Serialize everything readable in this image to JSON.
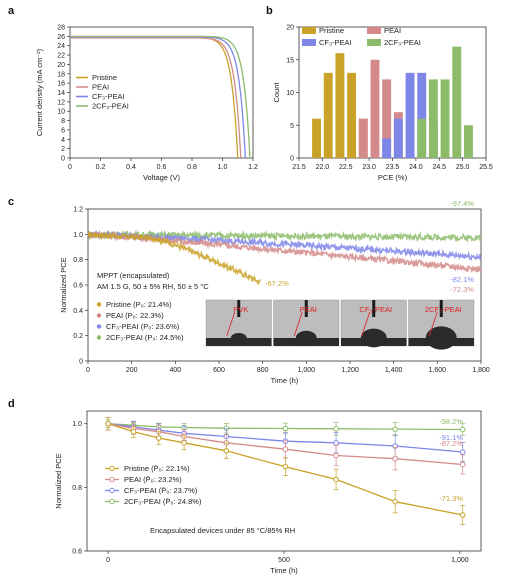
{
  "colors": {
    "pristine": "#c9a227",
    "peai": "#d48a8a",
    "cf3": "#7e86e8",
    "twocf3": "#8cbc6a",
    "pvk_label": "#e02020"
  },
  "chart_data": [
    {
      "panel": "a",
      "type": "line",
      "xlabel": "Voltage (V)",
      "ylabel": "Current density (mA cm⁻²)",
      "xlim": [
        0,
        1.2
      ],
      "ylim": [
        0,
        28
      ],
      "xticks": [
        "0",
        "0.2",
        "0.4",
        "0.6",
        "0.8",
        "1.0",
        "1.2"
      ],
      "yticks": [
        "0",
        "2",
        "4",
        "6",
        "8",
        "10",
        "12",
        "14",
        "16",
        "18",
        "20",
        "22",
        "24",
        "26",
        "28"
      ],
      "legend_position": "left-middle",
      "series": [
        {
          "name": "Pristine",
          "color_key": "pristine",
          "jsc": 25.8,
          "voc": 1.1
        },
        {
          "name": "PEAI",
          "color_key": "peai",
          "jsc": 25.7,
          "voc": 1.12
        },
        {
          "name": "CF₃-PEAI",
          "color_key": "cf3",
          "jsc": 25.9,
          "voc": 1.15
        },
        {
          "name": "2CF₃-PEAI",
          "color_key": "twocf3",
          "jsc": 26.0,
          "voc": 1.18
        }
      ]
    },
    {
      "panel": "b",
      "type": "bar",
      "xlabel": "PCE (%)",
      "ylabel": "Count",
      "xlim": [
        21.5,
        25.5
      ],
      "ylim": [
        0,
        20
      ],
      "xticks": [
        "21.5",
        "22.0",
        "22.5",
        "23.0",
        "23.5",
        "24.0",
        "24.5",
        "25.0",
        "25.5"
      ],
      "yticks": [
        "0",
        "5",
        "10",
        "15",
        "20"
      ],
      "legend_position": "top",
      "bin_width": 0.25,
      "series": [
        {
          "name": "Pristine",
          "color_key": "pristine",
          "bins": [
            21.875,
            22.125,
            22.375,
            22.625,
            22.875
          ],
          "values": [
            6,
            13,
            16,
            13,
            6
          ]
        },
        {
          "name": "PEAI",
          "color_key": "peai",
          "bins": [
            22.875,
            23.125,
            23.375,
            23.625
          ],
          "values": [
            6,
            15,
            12,
            7
          ]
        },
        {
          "name": "CF₃-PEAI",
          "color_key": "cf3",
          "bins": [
            23.375,
            23.625,
            23.875,
            24.125,
            24.375
          ],
          "values": [
            3,
            6,
            13,
            13,
            5
          ]
        },
        {
          "name": "2CF₃-PEAI",
          "color_key": "twocf3",
          "bins": [
            24.125,
            24.375,
            24.625,
            24.875,
            25.125
          ],
          "values": [
            6,
            12,
            12,
            17,
            5
          ]
        }
      ]
    },
    {
      "panel": "c",
      "type": "scatter",
      "xlabel": "Time (h)",
      "ylabel": "Normalized PCE",
      "xlim": [
        0,
        1800
      ],
      "ylim": [
        0,
        1.2
      ],
      "xticks": [
        "0",
        "200",
        "400",
        "600",
        "800",
        "1,000",
        "1,200",
        "1,400",
        "1,600",
        "1,800"
      ],
      "yticks": [
        "0",
        "0.2",
        "0.4",
        "0.6",
        "0.8",
        "1.0",
        "1.2"
      ],
      "conditions": [
        "MPPT (encapsulated)",
        "AM 1.5 G, 50 ± 5% RH, 50 ± 5 °C"
      ],
      "legend_position": "left-bottom",
      "series": [
        {
          "name": "Pristine (P₀: 21.4%)",
          "color_key": "pristine",
          "end_x": 790,
          "end_y": 0.672,
          "final_label": "-67.2%"
        },
        {
          "name": "PEAI (P₀: 22.3%)",
          "color_key": "peai",
          "end_x": 1800,
          "end_y": 0.723,
          "final_label": "-72.3%"
        },
        {
          "name": "CF₃-PEAI (P₀: 23.6%)",
          "color_key": "cf3",
          "end_x": 1800,
          "end_y": 0.821,
          "final_label": "-82.1%"
        },
        {
          "name": "2CF₃-PEAI (P₀: 24.5%)",
          "color_key": "twocf3",
          "end_x": 1800,
          "end_y": 0.974,
          "final_label": "-97.4%"
        }
      ],
      "inset_labels": [
        "PVK",
        "PEAI",
        "CF₃-PEAI",
        "2CF₃-PEAI"
      ]
    },
    {
      "panel": "d",
      "type": "line",
      "xlabel": "Time (h)",
      "ylabel": "Normalized PCE",
      "xlim": [
        -60,
        1060
      ],
      "ylim": [
        0.6,
        1.04
      ],
      "xticks": [
        "0",
        "500",
        "1,000"
      ],
      "yticks": [
        "0.6",
        "0.8",
        "1.0"
      ],
      "note": "Encapsulated devices under 85 °C/85% RH",
      "legend_position": "left-middle",
      "x": [
        0,
        72,
        144,
        216,
        336,
        504,
        648,
        816,
        1008
      ],
      "series": [
        {
          "name": "Pristine (P̄₀: 22.1%)",
          "color_key": "pristine",
          "values": [
            1.0,
            0.975,
            0.955,
            0.94,
            0.915,
            0.865,
            0.825,
            0.755,
            0.713
          ],
          "final_label": "-71.3%"
        },
        {
          "name": "PEAI (P̄₀: 23.2%)",
          "color_key": "peai",
          "values": [
            1.0,
            0.985,
            0.975,
            0.96,
            0.94,
            0.92,
            0.9,
            0.89,
            0.872
          ],
          "final_label": "-87.2%"
        },
        {
          "name": "CF₃-PEAI (P̄₀: 23.7%)",
          "color_key": "cf3",
          "values": [
            1.0,
            0.99,
            0.98,
            0.97,
            0.96,
            0.945,
            0.94,
            0.93,
            0.911
          ],
          "final_label": "-91.1%"
        },
        {
          "name": "2CF₃-PEAI (P̄₀: 24.8%)",
          "color_key": "twocf3",
          "values": [
            1.0,
            0.995,
            0.99,
            0.988,
            0.986,
            0.985,
            0.984,
            0.983,
            0.982
          ],
          "final_label": "-98.2%"
        }
      ]
    }
  ],
  "panel_labels": [
    "a",
    "b",
    "c",
    "d"
  ]
}
